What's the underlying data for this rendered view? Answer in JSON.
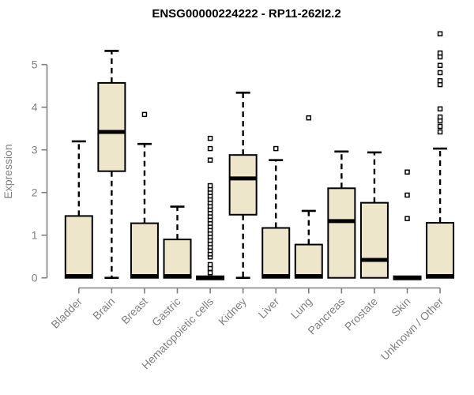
{
  "chart_data": {
    "type": "boxplot",
    "title": "ENSG00000224222 - RP11-262I2.2",
    "xlabel": "",
    "ylabel": "Expression",
    "ylim": [
      0,
      5
    ],
    "yticks": [
      0,
      1,
      2,
      3,
      4,
      5
    ],
    "grid": false,
    "legend": "none",
    "categories": [
      "Bladder",
      "Brain",
      "Breast",
      "Gastric",
      "Hematopoietic cells",
      "Kidney",
      "Liver",
      "Lung",
      "Pancreas",
      "Prostate",
      "Skin",
      "Unknown / Other"
    ],
    "series": [
      {
        "category": "Bladder",
        "whisker_low": 0,
        "q1": 0,
        "median": 0.04,
        "q3": 1.45,
        "whisker_high": 3.2,
        "outliers": []
      },
      {
        "category": "Brain",
        "whisker_low": 0,
        "q1": 2.5,
        "median": 3.42,
        "q3": 4.57,
        "whisker_high": 5.32,
        "outliers": []
      },
      {
        "category": "Breast",
        "whisker_low": 0,
        "q1": 0,
        "median": 0.04,
        "q3": 1.28,
        "whisker_high": 3.14,
        "outliers": [
          3.83
        ]
      },
      {
        "category": "Gastric",
        "whisker_low": 0,
        "q1": 0,
        "median": 0.04,
        "q3": 0.9,
        "whisker_high": 1.67,
        "outliers": []
      },
      {
        "category": "Hematopoietic cells",
        "whisker_low": 0,
        "q1": 0,
        "median": 0,
        "q3": 0,
        "whisker_high": 0,
        "outliers": [
          0.12,
          0.22,
          0.31,
          0.49,
          0.56,
          0.64,
          0.72,
          0.8,
          0.88,
          0.96,
          1.04,
          1.12,
          1.2,
          1.28,
          1.36,
          1.44,
          1.52,
          1.6,
          1.68,
          1.76,
          1.84,
          1.92,
          2.0,
          2.08,
          2.16,
          2.76,
          3.03,
          3.27
        ]
      },
      {
        "category": "Kidney",
        "whisker_low": 0,
        "q1": 1.48,
        "median": 2.33,
        "q3": 2.88,
        "whisker_high": 4.34,
        "outliers": []
      },
      {
        "category": "Liver",
        "whisker_low": 0,
        "q1": 0,
        "median": 0.04,
        "q3": 1.17,
        "whisker_high": 2.76,
        "outliers": [
          3.03
        ]
      },
      {
        "category": "Lung",
        "whisker_low": 0,
        "q1": 0,
        "median": 0.04,
        "q3": 0.78,
        "whisker_high": 1.57,
        "outliers": [
          3.75
        ]
      },
      {
        "category": "Pancreas",
        "whisker_low": 0,
        "q1": 0,
        "median": 1.33,
        "q3": 2.1,
        "whisker_high": 2.96,
        "outliers": []
      },
      {
        "category": "Prostate",
        "whisker_low": 0,
        "q1": 0,
        "median": 0.42,
        "q3": 1.76,
        "whisker_high": 2.94,
        "outliers": []
      },
      {
        "category": "Skin",
        "whisker_low": 0,
        "q1": 0,
        "median": 0,
        "q3": 0,
        "whisker_high": 0,
        "outliers": [
          1.39,
          1.94,
          2.48
        ]
      },
      {
        "category": "Unknown / Other",
        "whisker_low": 0,
        "q1": 0,
        "median": 0.04,
        "q3": 1.29,
        "whisker_high": 3.03,
        "outliers": [
          3.42,
          3.55,
          3.68,
          3.77,
          3.96,
          4.53,
          4.62,
          4.81,
          4.98,
          5.18,
          5.27,
          5.72
        ]
      }
    ],
    "colors": {
      "box_fill": "#EDE6CB",
      "box_stroke": "#000000",
      "median": "#000000",
      "whisker": "#000000",
      "outlier_stroke": "#000000",
      "axis": "#808080",
      "tick_label": "#818181",
      "title": "#000000"
    }
  }
}
